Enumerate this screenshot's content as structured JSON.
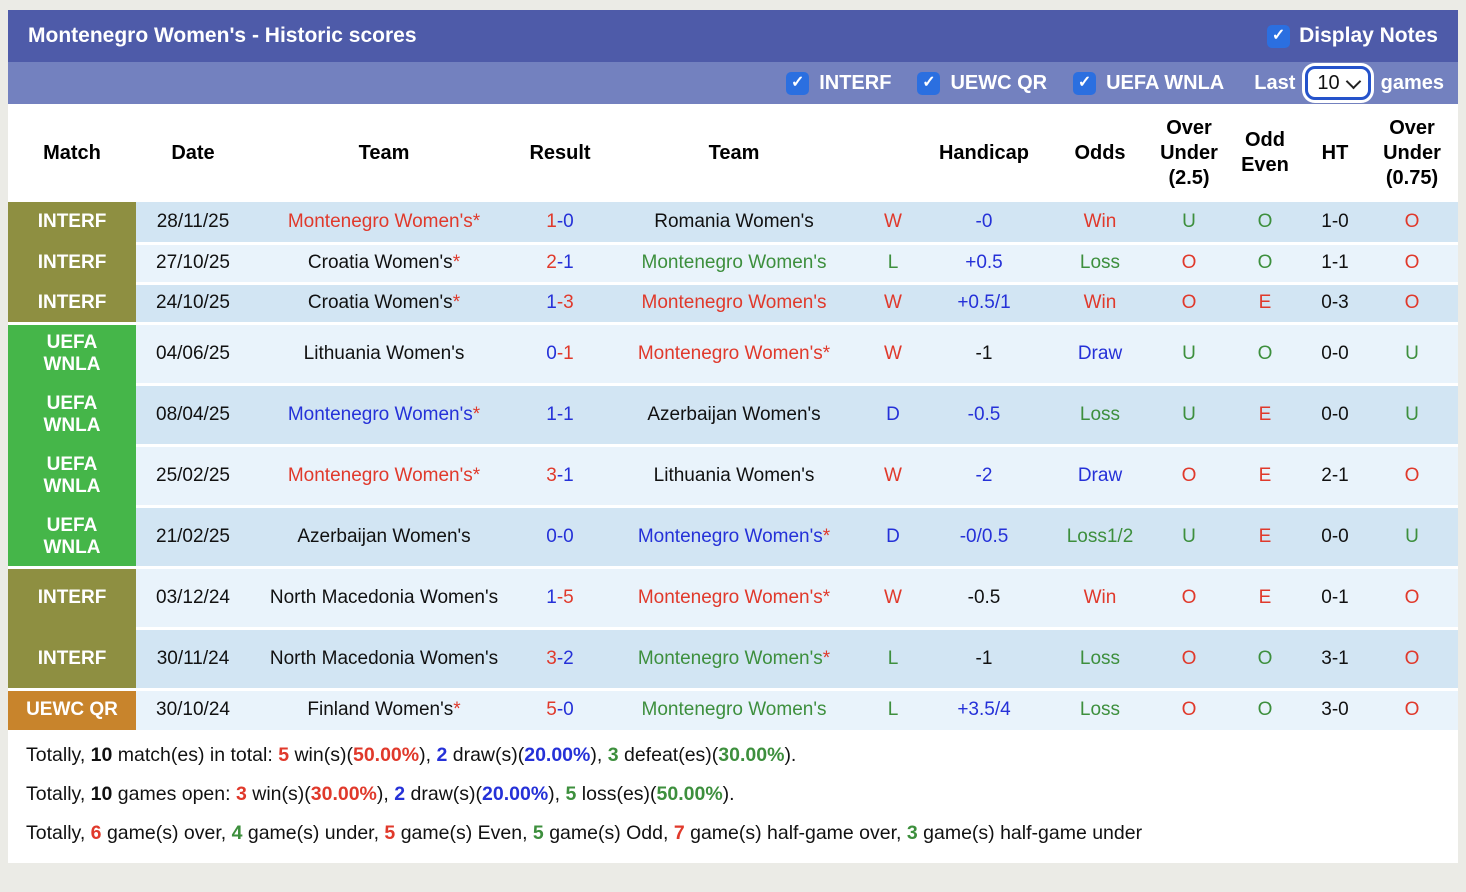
{
  "colors": {
    "red": "#e0392b",
    "blue": "#2531d8",
    "green": "#3d8f3d",
    "black": "#111111",
    "olive": "#8e8f41",
    "league_green": "#45b649",
    "orange": "#c8842c",
    "topbar_bg": "#4e5ba9",
    "filterbar_bg": "#7381bf",
    "checkbox_blue": "#2b6fe0",
    "row_dark": "#d2e5f3",
    "row_light": "#e9f3fb"
  },
  "topbar": {
    "title": "Montenegro Women's - Historic scores",
    "display_notes_label": "Display Notes",
    "display_notes_checked": true
  },
  "filterbar": {
    "competitions": [
      {
        "label": "INTERF",
        "checked": true
      },
      {
        "label": "UEWC QR",
        "checked": true
      },
      {
        "label": "UEFA WNLA",
        "checked": true
      }
    ],
    "last_label": "Last",
    "games_select_value": "10",
    "games_label": "games"
  },
  "table": {
    "headers": [
      "Match",
      "Date",
      "Team",
      "Result",
      "Team",
      "",
      "Handicap",
      "Odds",
      "Over Under (2.5)",
      "Odd Even",
      "HT",
      "Over Under (0.75)"
    ],
    "rows": [
      {
        "league": "INTERF",
        "league_lines": [
          "INTERF"
        ],
        "league_color": "olive",
        "group_start": true,
        "date": "28/11/25",
        "team1": {
          "name": "Montenegro Women's",
          "star": true,
          "color": "red"
        },
        "score": {
          "a": "1",
          "b": "0",
          "a_color": "red",
          "b_color": "blue"
        },
        "team2": {
          "name": "Romania Women's",
          "star": false,
          "color": "black"
        },
        "wdl": {
          "text": "W",
          "color": "red"
        },
        "handicap": {
          "text": "-0",
          "color": "blue"
        },
        "odds": {
          "text": "Win",
          "color": "red"
        },
        "ou25": {
          "text": "U",
          "color": "green"
        },
        "odd_even": {
          "text": "O",
          "color": "green"
        },
        "ht": "1-0",
        "ou075": {
          "text": "O",
          "color": "red"
        }
      },
      {
        "league": "INTERF",
        "league_lines": [
          "INTERF"
        ],
        "league_color": "olive",
        "group_start": false,
        "date": "27/10/25",
        "team1": {
          "name": "Croatia Women's",
          "star": true,
          "color": "black"
        },
        "score": {
          "a": "2",
          "b": "1",
          "a_color": "red",
          "b_color": "blue"
        },
        "team2": {
          "name": "Montenegro Women's",
          "star": false,
          "color": "green"
        },
        "wdl": {
          "text": "L",
          "color": "green"
        },
        "handicap": {
          "text": "+0.5",
          "color": "blue"
        },
        "odds": {
          "text": "Loss",
          "color": "green"
        },
        "ou25": {
          "text": "O",
          "color": "red"
        },
        "odd_even": {
          "text": "O",
          "color": "green"
        },
        "ht": "1-1",
        "ou075": {
          "text": "O",
          "color": "red"
        }
      },
      {
        "league": "INTERF",
        "league_lines": [
          "INTERF"
        ],
        "league_color": "olive",
        "group_start": false,
        "date": "24/10/25",
        "team1": {
          "name": "Croatia Women's",
          "star": true,
          "color": "black"
        },
        "score": {
          "a": "1",
          "b": "3",
          "a_color": "blue",
          "b_color": "red"
        },
        "team2": {
          "name": "Montenegro Women's",
          "star": false,
          "color": "red"
        },
        "wdl": {
          "text": "W",
          "color": "red"
        },
        "handicap": {
          "text": "+0.5/1",
          "color": "blue"
        },
        "odds": {
          "text": "Win",
          "color": "red"
        },
        "ou25": {
          "text": "O",
          "color": "red"
        },
        "odd_even": {
          "text": "E",
          "color": "red"
        },
        "ht": "0-3",
        "ou075": {
          "text": "O",
          "color": "red"
        }
      },
      {
        "league": "UEFA WNLA",
        "league_lines": [
          "UEFA",
          "WNLA"
        ],
        "league_color": "league_green",
        "group_start": true,
        "date": "04/06/25",
        "team1": {
          "name": "Lithuania Women's",
          "star": false,
          "color": "black"
        },
        "score": {
          "a": "0",
          "b": "1",
          "a_color": "blue",
          "b_color": "red"
        },
        "team2": {
          "name": "Montenegro Women's",
          "star": true,
          "color": "red"
        },
        "wdl": {
          "text": "W",
          "color": "red"
        },
        "handicap": {
          "text": "-1",
          "color": "black"
        },
        "odds": {
          "text": "Draw",
          "color": "blue"
        },
        "ou25": {
          "text": "U",
          "color": "green"
        },
        "odd_even": {
          "text": "O",
          "color": "green"
        },
        "ht": "0-0",
        "ou075": {
          "text": "U",
          "color": "green"
        }
      },
      {
        "league": "UEFA WNLA",
        "league_lines": [
          "UEFA",
          "WNLA"
        ],
        "league_color": "league_green",
        "group_start": false,
        "date": "08/04/25",
        "team1": {
          "name": "Montenegro Women's",
          "star": true,
          "color": "blue"
        },
        "score": {
          "a": "1",
          "b": "1",
          "a_color": "blue",
          "b_color": "blue"
        },
        "team2": {
          "name": "Azerbaijan Women's",
          "star": false,
          "color": "black"
        },
        "wdl": {
          "text": "D",
          "color": "blue"
        },
        "handicap": {
          "text": "-0.5",
          "color": "blue"
        },
        "odds": {
          "text": "Loss",
          "color": "green"
        },
        "ou25": {
          "text": "U",
          "color": "green"
        },
        "odd_even": {
          "text": "E",
          "color": "red"
        },
        "ht": "0-0",
        "ou075": {
          "text": "U",
          "color": "green"
        }
      },
      {
        "league": "UEFA WNLA",
        "league_lines": [
          "UEFA",
          "WNLA"
        ],
        "league_color": "league_green",
        "group_start": false,
        "date": "25/02/25",
        "team1": {
          "name": "Montenegro Women's",
          "star": true,
          "color": "red"
        },
        "score": {
          "a": "3",
          "b": "1",
          "a_color": "red",
          "b_color": "blue"
        },
        "team2": {
          "name": "Lithuania Women's",
          "star": false,
          "color": "black"
        },
        "wdl": {
          "text": "W",
          "color": "red"
        },
        "handicap": {
          "text": "-2",
          "color": "blue"
        },
        "odds": {
          "text": "Draw",
          "color": "blue"
        },
        "ou25": {
          "text": "O",
          "color": "red"
        },
        "odd_even": {
          "text": "E",
          "color": "red"
        },
        "ht": "2-1",
        "ou075": {
          "text": "O",
          "color": "red"
        }
      },
      {
        "league": "UEFA WNLA",
        "league_lines": [
          "UEFA",
          "WNLA"
        ],
        "league_color": "league_green",
        "group_start": false,
        "date": "21/02/25",
        "team1": {
          "name": "Azerbaijan Women's",
          "star": false,
          "color": "black"
        },
        "score": {
          "a": "0",
          "b": "0",
          "a_color": "blue",
          "b_color": "blue"
        },
        "team2": {
          "name": "Montenegro Women's",
          "star": true,
          "color": "blue"
        },
        "wdl": {
          "text": "D",
          "color": "blue"
        },
        "handicap": {
          "text": "-0/0.5",
          "color": "blue"
        },
        "odds": {
          "text": "Loss1/2",
          "color": "green"
        },
        "ou25": {
          "text": "U",
          "color": "green"
        },
        "odd_even": {
          "text": "E",
          "color": "red"
        },
        "ht": "0-0",
        "ou075": {
          "text": "U",
          "color": "green"
        }
      },
      {
        "league": "INTERF",
        "league_lines": [
          "INTERF"
        ],
        "league_color": "olive",
        "group_start": true,
        "date": "03/12/24",
        "team1": {
          "name": "North Macedonia Women's",
          "star": false,
          "color": "black"
        },
        "score": {
          "a": "1",
          "b": "5",
          "a_color": "blue",
          "b_color": "red"
        },
        "team2": {
          "name": "Montenegro Women's",
          "star": true,
          "color": "red"
        },
        "wdl": {
          "text": "W",
          "color": "red"
        },
        "handicap": {
          "text": "-0.5",
          "color": "black"
        },
        "odds": {
          "text": "Win",
          "color": "red"
        },
        "ou25": {
          "text": "O",
          "color": "red"
        },
        "odd_even": {
          "text": "E",
          "color": "red"
        },
        "ht": "0-1",
        "ou075": {
          "text": "O",
          "color": "red"
        }
      },
      {
        "league": "INTERF",
        "league_lines": [
          "INTERF"
        ],
        "league_color": "olive",
        "group_start": false,
        "date": "30/11/24",
        "team1": {
          "name": "North Macedonia Women's",
          "star": false,
          "color": "black"
        },
        "score": {
          "a": "3",
          "b": "2",
          "a_color": "red",
          "b_color": "blue"
        },
        "team2": {
          "name": "Montenegro Women's",
          "star": true,
          "color": "green"
        },
        "wdl": {
          "text": "L",
          "color": "green"
        },
        "handicap": {
          "text": "-1",
          "color": "black"
        },
        "odds": {
          "text": "Loss",
          "color": "green"
        },
        "ou25": {
          "text": "O",
          "color": "red"
        },
        "odd_even": {
          "text": "O",
          "color": "green"
        },
        "ht": "3-1",
        "ou075": {
          "text": "O",
          "color": "red"
        }
      },
      {
        "league": "UEWC QR",
        "league_lines": [
          "UEWC QR"
        ],
        "league_color": "orange",
        "group_start": true,
        "date": "30/10/24",
        "team1": {
          "name": "Finland Women's",
          "star": true,
          "color": "black"
        },
        "score": {
          "a": "5",
          "b": "0",
          "a_color": "red",
          "b_color": "blue"
        },
        "team2": {
          "name": "Montenegro Women's",
          "star": false,
          "color": "green"
        },
        "wdl": {
          "text": "L",
          "color": "green"
        },
        "handicap": {
          "text": "+3.5/4",
          "color": "blue"
        },
        "odds": {
          "text": "Loss",
          "color": "green"
        },
        "ou25": {
          "text": "O",
          "color": "red"
        },
        "odd_even": {
          "text": "O",
          "color": "green"
        },
        "ht": "3-0",
        "ou075": {
          "text": "O",
          "color": "red"
        }
      }
    ]
  },
  "footer": {
    "lines": [
      {
        "segments": [
          {
            "t": "Totally, "
          },
          {
            "t": "10",
            "b": 1
          },
          {
            "t": " match(es) in total: "
          },
          {
            "t": "5",
            "c": "red",
            "b": 1
          },
          {
            "t": " win(s)("
          },
          {
            "t": "50.00%",
            "c": "red",
            "b": 1
          },
          {
            "t": "), "
          },
          {
            "t": "2",
            "c": "blue",
            "b": 1
          },
          {
            "t": " draw(s)("
          },
          {
            "t": "20.00%",
            "c": "blue",
            "b": 1
          },
          {
            "t": "), "
          },
          {
            "t": "3",
            "c": "green",
            "b": 1
          },
          {
            "t": " defeat(es)("
          },
          {
            "t": "30.00%",
            "c": "green",
            "b": 1
          },
          {
            "t": ")."
          }
        ]
      },
      {
        "segments": [
          {
            "t": "Totally, "
          },
          {
            "t": "10",
            "b": 1
          },
          {
            "t": " games open: "
          },
          {
            "t": "3",
            "c": "red",
            "b": 1
          },
          {
            "t": " win(s)("
          },
          {
            "t": "30.00%",
            "c": "red",
            "b": 1
          },
          {
            "t": "), "
          },
          {
            "t": "2",
            "c": "blue",
            "b": 1
          },
          {
            "t": " draw(s)("
          },
          {
            "t": "20.00%",
            "c": "blue",
            "b": 1
          },
          {
            "t": "), "
          },
          {
            "t": "5",
            "c": "green",
            "b": 1
          },
          {
            "t": " loss(es)("
          },
          {
            "t": "50.00%",
            "c": "green",
            "b": 1
          },
          {
            "t": ")."
          }
        ]
      },
      {
        "segments": [
          {
            "t": "Totally, "
          },
          {
            "t": "6",
            "c": "red",
            "b": 1
          },
          {
            "t": " game(s) over, "
          },
          {
            "t": "4",
            "c": "green",
            "b": 1
          },
          {
            "t": " game(s) under, "
          },
          {
            "t": "5",
            "c": "red",
            "b": 1
          },
          {
            "t": " game(s) Even, "
          },
          {
            "t": "5",
            "c": "green",
            "b": 1
          },
          {
            "t": " game(s) Odd, "
          },
          {
            "t": "7",
            "c": "red",
            "b": 1
          },
          {
            "t": " game(s) half-game over, "
          },
          {
            "t": "3",
            "c": "green",
            "b": 1
          },
          {
            "t": " game(s) half-game under"
          }
        ]
      }
    ]
  }
}
